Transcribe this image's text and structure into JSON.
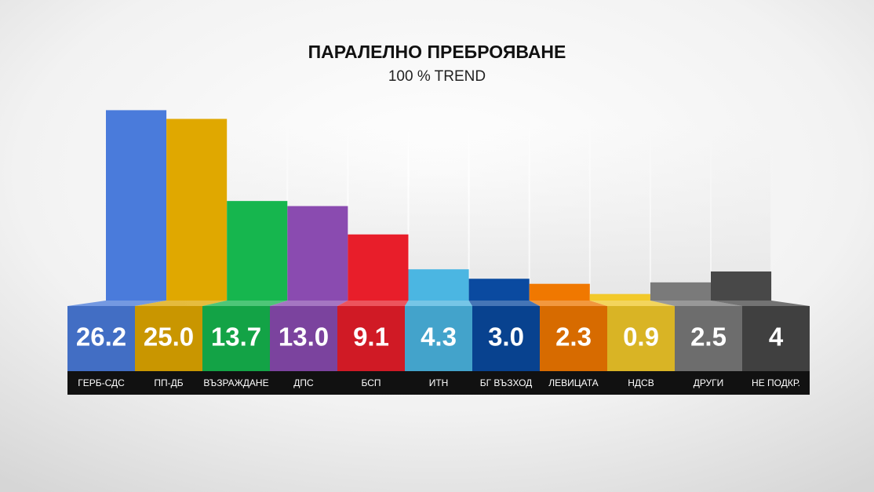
{
  "chart_data": {
    "type": "bar",
    "title": "ПАРАЛЕЛНО ПРЕБРОЯВАНЕ",
    "subtitle": "100 %  TREND",
    "categories": [
      "ГЕРБ-СДС",
      "ПП-ДБ",
      "ВЪЗРАЖДАНЕ",
      "ДПС",
      "БСП",
      "ИТН",
      "БГ ВЪЗХОД",
      "ЛЕВИЦАТА",
      "НДСВ",
      "ДРУГИ",
      "НЕ ПОДКР."
    ],
    "values": [
      26.2,
      25.0,
      13.7,
      13.0,
      9.1,
      4.3,
      3.0,
      2.3,
      0.9,
      2.5,
      4
    ],
    "value_labels": [
      "26.2",
      "25.0",
      "13.7",
      "13.0",
      "9.1",
      "4.3",
      "3.0",
      "2.3",
      "0.9",
      "2.5",
      "4"
    ],
    "colors": [
      "#4a7bdb",
      "#e0a800",
      "#16b64e",
      "#8a4bb0",
      "#e81e2a",
      "#4bb6e2",
      "#0a4aa0",
      "#f07800",
      "#f2c92a",
      "#7a7a7a",
      "#484848"
    ],
    "ylim": [
      0,
      27
    ]
  }
}
